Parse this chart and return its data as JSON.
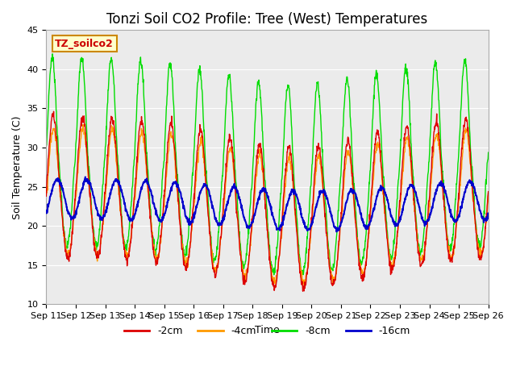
{
  "title": "Tonzi Soil CO2 Profile: Tree (West) Temperatures",
  "xlabel": "Time",
  "ylabel": "Soil Temperature (C)",
  "ylim": [
    10,
    45
  ],
  "yticks": [
    10,
    15,
    20,
    25,
    30,
    35,
    40,
    45
  ],
  "xtick_labels": [
    "Sep 11",
    "Sep 12",
    "Sep 13",
    "Sep 14",
    "Sep 15",
    "Sep 16",
    "Sep 17",
    "Sep 18",
    "Sep 19",
    "Sep 20",
    "Sep 21",
    "Sep 22",
    "Sep 23",
    "Sep 24",
    "Sep 25",
    "Sep 26"
  ],
  "legend_label": "TZ_soilco2",
  "legend_box_color": "#ffffcc",
  "legend_box_edge": "#cc8800",
  "legend_text_color": "#cc0000",
  "series_labels": [
    "-2cm",
    "-4cm",
    "-8cm",
    "-16cm"
  ],
  "series_colors": [
    "#dd0000",
    "#ff9900",
    "#00dd00",
    "#0000cc"
  ],
  "plot_bg_color": "#ebebeb",
  "title_fontsize": 12,
  "axis_label_fontsize": 9,
  "tick_fontsize": 8
}
